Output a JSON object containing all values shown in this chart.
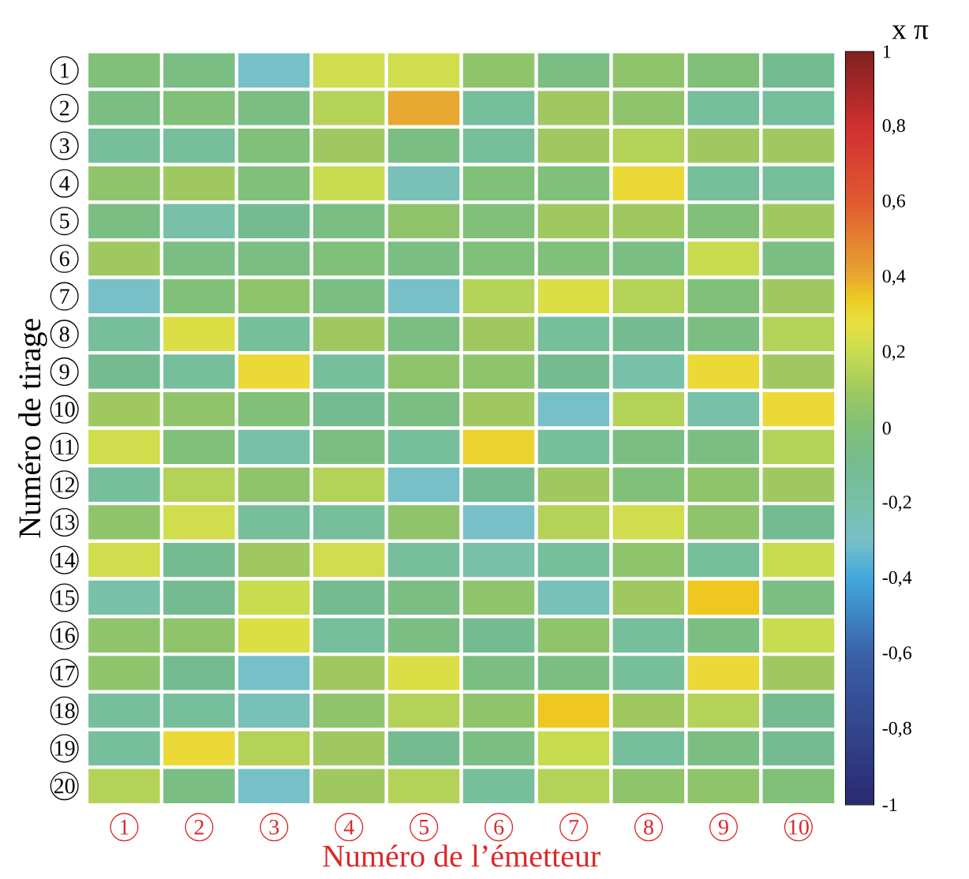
{
  "chart_data": {
    "type": "heatmap",
    "xlabel": "Numéro de l’émetteur",
    "ylabel": "Numéro de tirage",
    "clabel": "x π",
    "categories": [
      "1",
      "2",
      "3",
      "4",
      "5",
      "6",
      "7",
      "8",
      "9",
      "10"
    ],
    "y_categories": [
      "1",
      "2",
      "3",
      "4",
      "5",
      "6",
      "7",
      "8",
      "9",
      "10",
      "11",
      "12",
      "13",
      "14",
      "15",
      "16",
      "17",
      "18",
      "19",
      "20"
    ],
    "cells": [
      [
        0,
        -0.05,
        -0.3,
        0.22,
        0.22,
        0.05,
        -0.05,
        0.05,
        0,
        -0.1
      ],
      [
        -0.05,
        0,
        -0.05,
        0.15,
        0.4,
        -0.15,
        0.1,
        0.05,
        -0.15,
        -0.15
      ],
      [
        -0.15,
        -0.15,
        0,
        0.1,
        -0.05,
        -0.15,
        0.1,
        0.15,
        0.1,
        0.1
      ],
      [
        0.05,
        0.1,
        0,
        0.2,
        -0.25,
        0,
        0,
        0.3,
        -0.15,
        -0.15
      ],
      [
        -0.05,
        -0.2,
        -0.1,
        -0.05,
        0.05,
        0,
        0.1,
        0.1,
        0,
        0.1
      ],
      [
        0.1,
        -0.05,
        -0.05,
        0,
        -0.05,
        0,
        0,
        -0.05,
        0.2,
        -0.05
      ],
      [
        -0.3,
        0,
        0.05,
        -0.05,
        -0.3,
        0.15,
        0.25,
        0.15,
        0,
        0.1
      ],
      [
        -0.15,
        0.25,
        -0.15,
        0.1,
        -0.05,
        0.1,
        -0.15,
        -0.1,
        -0.05,
        0.15
      ],
      [
        -0.1,
        -0.15,
        0.3,
        -0.15,
        0.05,
        0.05,
        -0.1,
        -0.2,
        0.3,
        0.1
      ],
      [
        0.1,
        0.05,
        0,
        -0.1,
        -0.05,
        0.1,
        -0.3,
        0.15,
        -0.2,
        0.3
      ],
      [
        0.22,
        0,
        -0.2,
        -0.05,
        -0.15,
        0.32,
        -0.15,
        -0.05,
        -0.05,
        0.15
      ],
      [
        -0.15,
        0.15,
        0.05,
        0.15,
        -0.3,
        -0.1,
        0.1,
        0,
        0.05,
        0.1
      ],
      [
        0.05,
        0.22,
        -0.15,
        -0.15,
        0.05,
        -0.3,
        0.15,
        0.22,
        0.05,
        -0.1
      ],
      [
        0.22,
        -0.1,
        0.1,
        0.22,
        -0.15,
        -0.2,
        -0.15,
        0.05,
        -0.15,
        0.2
      ],
      [
        -0.2,
        -0.1,
        0.2,
        -0.1,
        -0.05,
        0.05,
        -0.25,
        0.1,
        0.35,
        -0.05
      ],
      [
        0.05,
        0.05,
        0.25,
        -0.15,
        -0.05,
        -0.1,
        0.05,
        -0.15,
        -0.05,
        0.2
      ],
      [
        0.05,
        -0.1,
        -0.3,
        0.1,
        0.25,
        -0.05,
        -0.05,
        -0.15,
        0.3,
        0.1
      ],
      [
        -0.15,
        -0.15,
        -0.25,
        0.05,
        0.15,
        0.05,
        0.35,
        0.1,
        0.15,
        -0.1
      ],
      [
        -0.15,
        0.3,
        0.15,
        0.1,
        -0.1,
        -0.05,
        0.2,
        -0.15,
        -0.05,
        -0.1
      ],
      [
        0.15,
        -0.05,
        -0.3,
        0.1,
        0.15,
        -0.15,
        0.15,
        0.05,
        0.05,
        0
      ]
    ],
    "clim": [
      -1,
      1
    ],
    "cticks": [
      {
        "value": -1,
        "label": "-1"
      },
      {
        "value": -0.8,
        "label": "-0,8"
      },
      {
        "value": -0.6,
        "label": "-0,6"
      },
      {
        "value": -0.4,
        "label": "-0,4"
      },
      {
        "value": -0.2,
        "label": "-0,2"
      },
      0,
      {
        "value": 0.2,
        "label": "0,2"
      },
      {
        "value": 0.4,
        "label": "0,4"
      },
      {
        "value": 0.6,
        "label": "0,6"
      },
      {
        "value": 0.8,
        "label": "0,8"
      },
      1
    ]
  }
}
